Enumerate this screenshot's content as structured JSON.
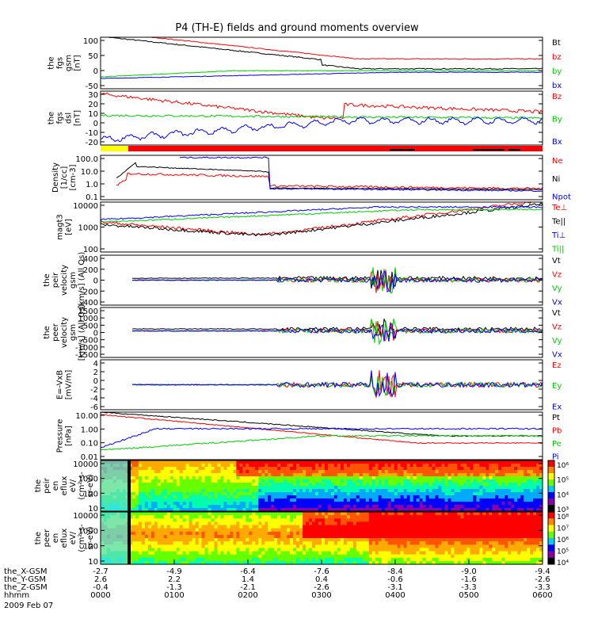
{
  "title": "P4 (TH-E) fields and ground moments overview",
  "colors": {
    "black": "#000000",
    "red": "#ff0000",
    "green": "#00cc00",
    "blue": "#0000ff",
    "yellow": "#ffff00"
  },
  "chart_data": {
    "type": "line",
    "time_ticks": [
      "0000",
      "0100",
      "0200",
      "0300",
      "0400",
      "0500",
      "0600"
    ],
    "ephemeris": [
      {
        "label": "the_X-GSM",
        "values": [
          "-2.7",
          "-4.9",
          "-6.4",
          "-7.6",
          "-8.4",
          "-9.0",
          "-9.4"
        ]
      },
      {
        "label": "the_Y-GSM",
        "values": [
          "2.6",
          "2.2",
          "1.4",
          "0.4",
          "-0.6",
          "-1.6",
          "-2.6"
        ]
      },
      {
        "label": "the_Z-GSM",
        "values": [
          "-0.4",
          "-1.3",
          "-2.1",
          "-2.6",
          "-3.1",
          "-3.3",
          "-3.3"
        ]
      },
      {
        "label": "hhmm",
        "values": []
      }
    ],
    "date": "2009 Feb 07",
    "panels": [
      {
        "id": "fgs_gsm",
        "ylabel": [
          "the",
          "fgs",
          "gsm",
          "[nT]"
        ],
        "yticks": [
          "100",
          "50",
          "0",
          "-50"
        ],
        "legend": [
          {
            "name": "Bt",
            "color": "#000000"
          },
          {
            "name": "bz",
            "color": "#ff0000"
          },
          {
            "name": "by",
            "color": "#00cc00"
          },
          {
            "name": "bx",
            "color": "#0000ff"
          }
        ]
      },
      {
        "id": "fgs_dsl",
        "ylabel": [
          "the",
          "fgs",
          "dsl",
          "[nT]"
        ],
        "yticks": [
          "30",
          "20",
          "10",
          "0",
          "-10",
          "-20"
        ],
        "legend": [
          {
            "name": "Bz",
            "color": "#ff0000"
          },
          {
            "name": "By",
            "color": "#00cc00"
          },
          {
            "name": "Bx",
            "color": "#0000ff"
          }
        ]
      },
      {
        "id": "density",
        "ylabel": [
          "Density",
          "[1/cc]",
          "[cm-3]"
        ],
        "yticks": [
          "100.0",
          "10.0",
          "1.0",
          "0.1"
        ],
        "legend": [
          {
            "name": "Ne",
            "color": "#ff0000"
          },
          {
            "name": "Ni",
            "color": "#000000"
          },
          {
            "name": "Npot",
            "color": "#0000ff"
          }
        ]
      },
      {
        "id": "temp",
        "ylabel": [
          "magt3",
          "[eV]"
        ],
        "yticks": [
          "10000",
          "1000",
          "100"
        ],
        "legend": [
          {
            "name": "Te⊥",
            "color": "#ff0000"
          },
          {
            "name": "Te||",
            "color": "#000000"
          },
          {
            "name": "Ti⊥",
            "color": "#0000ff"
          },
          {
            "name": "Ti||",
            "color": "#00cc00"
          }
        ]
      },
      {
        "id": "vi",
        "ylabel": [
          "the",
          "peir",
          "velocity",
          "gsm",
          "[km/s] (All Qs)"
        ],
        "yticks": [
          "400",
          "200",
          "0",
          "-200",
          "-400"
        ],
        "legend": [
          {
            "name": "Vt",
            "color": "#000000"
          },
          {
            "name": "Vz",
            "color": "#ff0000"
          },
          {
            "name": "Vy",
            "color": "#00cc00"
          },
          {
            "name": "Vx",
            "color": "#0000ff"
          }
        ]
      },
      {
        "id": "ve",
        "ylabel": [
          "the",
          "peer",
          "velocity",
          "gsm",
          "[km/s] (All Qs)"
        ],
        "yticks": [
          "1500",
          "1000",
          "500",
          "0",
          "-500",
          "-1000",
          "-1500"
        ],
        "legend": [
          {
            "name": "Vt",
            "color": "#000000"
          },
          {
            "name": "Vz",
            "color": "#ff0000"
          },
          {
            "name": "Vy",
            "color": "#00cc00"
          },
          {
            "name": "Vx",
            "color": "#0000ff"
          }
        ]
      },
      {
        "id": "efield",
        "ylabel": [
          "E=-VxB",
          "[mV/m]"
        ],
        "yticks": [
          "4",
          "2",
          "0",
          "-2",
          "-4",
          "-6"
        ],
        "legend": [
          {
            "name": "Ez",
            "color": "#ff0000"
          },
          {
            "name": "Ey",
            "color": "#00cc00"
          },
          {
            "name": "Ex",
            "color": "#0000ff"
          }
        ]
      },
      {
        "id": "pressure",
        "ylabel": [
          "Pressure",
          "[nPa]"
        ],
        "yticks": [
          "10.00",
          "1.00",
          "0.10",
          "0.01"
        ],
        "legend": [
          {
            "name": "Pt",
            "color": "#000000"
          },
          {
            "name": "Pb",
            "color": "#ff0000"
          },
          {
            "name": "Pe",
            "color": "#00cc00"
          },
          {
            "name": "Pi",
            "color": "#0000ff"
          }
        ]
      },
      {
        "id": "ion_spec",
        "ylabel": [
          "the",
          "peir",
          "en",
          "eflux",
          "eV/",
          "(cm²-s-",
          "sr-eV)"
        ],
        "yticks": [
          "10000",
          "1000",
          "100",
          "10"
        ],
        "colorbar": [
          "10⁶",
          "10⁵",
          "10⁴",
          "10³"
        ]
      },
      {
        "id": "elec_spec",
        "ylabel": [
          "the",
          "peer",
          "en",
          "eflux",
          "eV/",
          "(cm²-s-",
          "sr-eV)"
        ],
        "yticks": [
          "10000",
          "1000",
          "100",
          "10"
        ],
        "colorbar": [
          "10⁸",
          "10⁷",
          "10⁶",
          "10⁵",
          "10⁴"
        ]
      }
    ]
  }
}
